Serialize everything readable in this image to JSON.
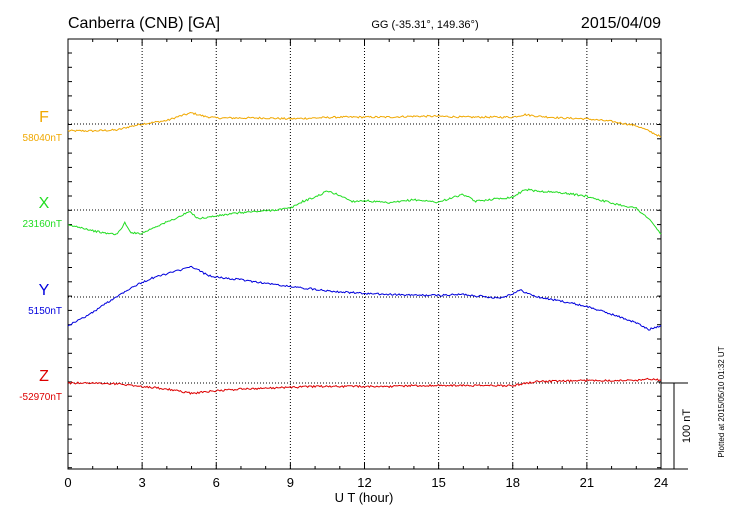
{
  "header": {
    "station": "Canberra (CNB)  [GA]",
    "coords": "GG (-35.31°, 149.36°)",
    "date": "2015/04/09"
  },
  "plotted_note": "Plotted at 2015/05/10 01:32 UT",
  "scale_bar": {
    "label": "100 nT",
    "value": 100
  },
  "chart_data": {
    "type": "line",
    "title": "",
    "xlabel": "U T (hour)",
    "ylabel": "",
    "xlim": [
      0,
      24
    ],
    "xticks": [
      0,
      3,
      6,
      9,
      12,
      15,
      18,
      21,
      24
    ],
    "xtick_labels": [
      "0",
      "3",
      "6",
      "9",
      "12",
      "15",
      "18",
      "21",
      "24"
    ],
    "grid": true,
    "series": [
      {
        "name": "F",
        "baseline_label": "58040nT",
        "color": "#f0a800",
        "baseline_value": 58040,
        "x": [
          0,
          1,
          2,
          2.5,
          3,
          4,
          4.5,
          5,
          5.5,
          6,
          7,
          8,
          9,
          10,
          11,
          12,
          13,
          14,
          15,
          16,
          17,
          18,
          18.5,
          19,
          20,
          21,
          22,
          23,
          23.5,
          24
        ],
        "y": [
          -8,
          -8,
          -7,
          -3,
          0,
          4,
          9,
          13,
          9,
          7,
          7,
          7,
          6,
          7,
          8,
          8,
          8,
          9,
          9,
          8,
          8,
          8,
          11,
          9,
          7,
          6,
          3,
          -2,
          -8,
          -15
        ]
      },
      {
        "name": "X",
        "baseline_label": "23160nT",
        "color": "#22dd22",
        "baseline_value": 23160,
        "x": [
          0,
          0.5,
          1,
          1.5,
          2,
          2.3,
          2.5,
          2.7,
          3,
          3.5,
          4,
          4.5,
          4.9,
          5.3,
          6,
          7,
          8,
          9,
          9.5,
          10,
          10.5,
          11,
          11.5,
          12,
          13,
          14,
          15,
          15.5,
          16,
          16.5,
          17,
          18,
          18.5,
          19,
          20,
          21,
          22,
          23,
          23.5,
          24
        ],
        "y": [
          -18,
          -20,
          -24,
          -27,
          -28,
          -15,
          -25,
          -27,
          -27,
          -20,
          -14,
          -8,
          -2,
          -10,
          -7,
          -3,
          -1,
          2,
          10,
          15,
          22,
          17,
          10,
          11,
          8,
          12,
          9,
          14,
          18,
          10,
          12,
          15,
          24,
          22,
          20,
          16,
          8,
          2,
          -10,
          -28
        ]
      },
      {
        "name": "Y",
        "baseline_label": "5150nT",
        "color": "#0000dd",
        "baseline_value": 5150,
        "x": [
          0,
          0.5,
          1,
          1.5,
          2,
          2.5,
          3,
          3.5,
          4,
          4.5,
          5,
          5.3,
          5.6,
          6,
          7,
          8,
          9,
          10,
          11,
          12,
          13,
          14,
          15,
          16,
          17,
          17.5,
          18,
          18.3,
          18.7,
          19,
          20,
          21,
          22,
          23,
          23.5,
          24
        ],
        "y": [
          -33,
          -26,
          -18,
          -8,
          1,
          10,
          17,
          23,
          27,
          31,
          35,
          31,
          26,
          23,
          20,
          16,
          12,
          9,
          6,
          4,
          3,
          2,
          2,
          3,
          0,
          -1,
          4,
          8,
          3,
          0,
          -5,
          -11,
          -20,
          -30,
          -38,
          -33
        ]
      },
      {
        "name": "Z",
        "baseline_label": "-52970nT",
        "color": "#dd0000",
        "baseline_value": -52970,
        "x": [
          0,
          1,
          2,
          3,
          4,
          5,
          6,
          7,
          8,
          9,
          10,
          11,
          12,
          13,
          14,
          15,
          16,
          17,
          18,
          19,
          20,
          21,
          22,
          23,
          23.5,
          24
        ],
        "y": [
          0,
          0,
          -1,
          -4,
          -7,
          -12,
          -9,
          -7,
          -6,
          -5,
          -4,
          -4,
          -4,
          -4,
          -3,
          -3,
          -3,
          -3,
          -3,
          2,
          2,
          3,
          3,
          3,
          5,
          3
        ]
      }
    ]
  }
}
